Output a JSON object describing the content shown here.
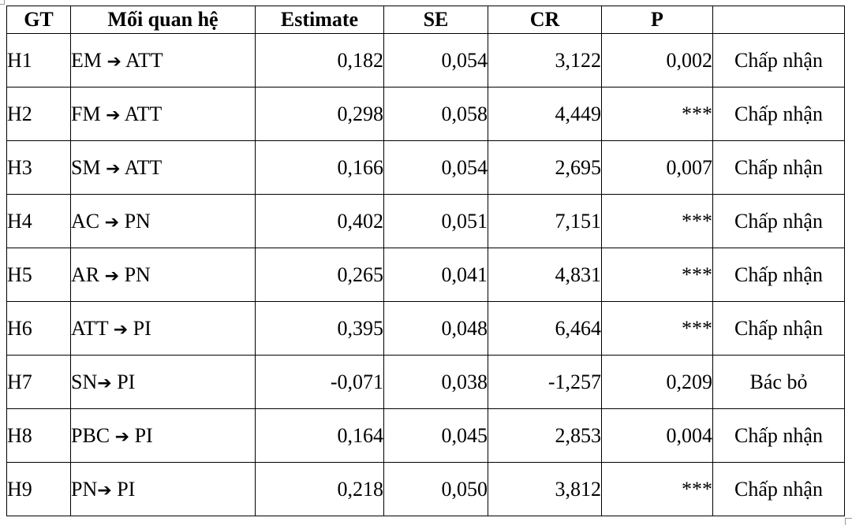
{
  "table": {
    "headers": [
      "GT",
      "Mối quan hệ",
      "Estimate",
      "SE",
      "CR",
      "P",
      ""
    ],
    "rows": [
      {
        "gt": "H1",
        "from": "EM",
        "to": "ATT",
        "estimate": "0,182",
        "se": "0,054",
        "cr": "3,122",
        "p": "0,002",
        "decision": "Chấp nhận"
      },
      {
        "gt": "H2",
        "from": "FM",
        "to": "ATT",
        "estimate": "0,298",
        "se": "0,058",
        "cr": "4,449",
        "p": "***",
        "decision": "Chấp nhận"
      },
      {
        "gt": "H3",
        "from": "SM",
        "to": "ATT",
        "estimate": "0,166",
        "se": "0,054",
        "cr": "2,695",
        "p": "0,007",
        "decision": "Chấp nhận"
      },
      {
        "gt": "H4",
        "from": "AC",
        "to": "PN",
        "estimate": "0,402",
        "se": "0,051",
        "cr": "7,151",
        "p": "***",
        "decision": "Chấp nhận"
      },
      {
        "gt": "H5",
        "from": "AR",
        "to": "PN",
        "estimate": "0,265",
        "se": "0,041",
        "cr": "4,831",
        "p": "***",
        "decision": "Chấp nhận"
      },
      {
        "gt": "H6",
        "from": "ATT",
        "to": "PI",
        "estimate": "0,395",
        "se": "0,048",
        "cr": "6,464",
        "p": "***",
        "decision": "Chấp nhận"
      },
      {
        "gt": "H7",
        "from": "SN",
        "to": "PI",
        "estimate": "-0,071",
        "se": "0,038",
        "cr": "-1,257",
        "p": "0,209",
        "decision": "Bác bỏ"
      },
      {
        "gt": "H8",
        "from": "PBC",
        "to": "PI",
        "estimate": "0,164",
        "se": "0,045",
        "cr": "2,853",
        "p": "0,004",
        "decision": "Chấp nhận"
      },
      {
        "gt": "H9",
        "from": "PN",
        "to": "PI",
        "estimate": "0,218",
        "se": "0,050",
        "cr": "3,812",
        "p": "***",
        "decision": "Chấp nhận"
      }
    ]
  }
}
